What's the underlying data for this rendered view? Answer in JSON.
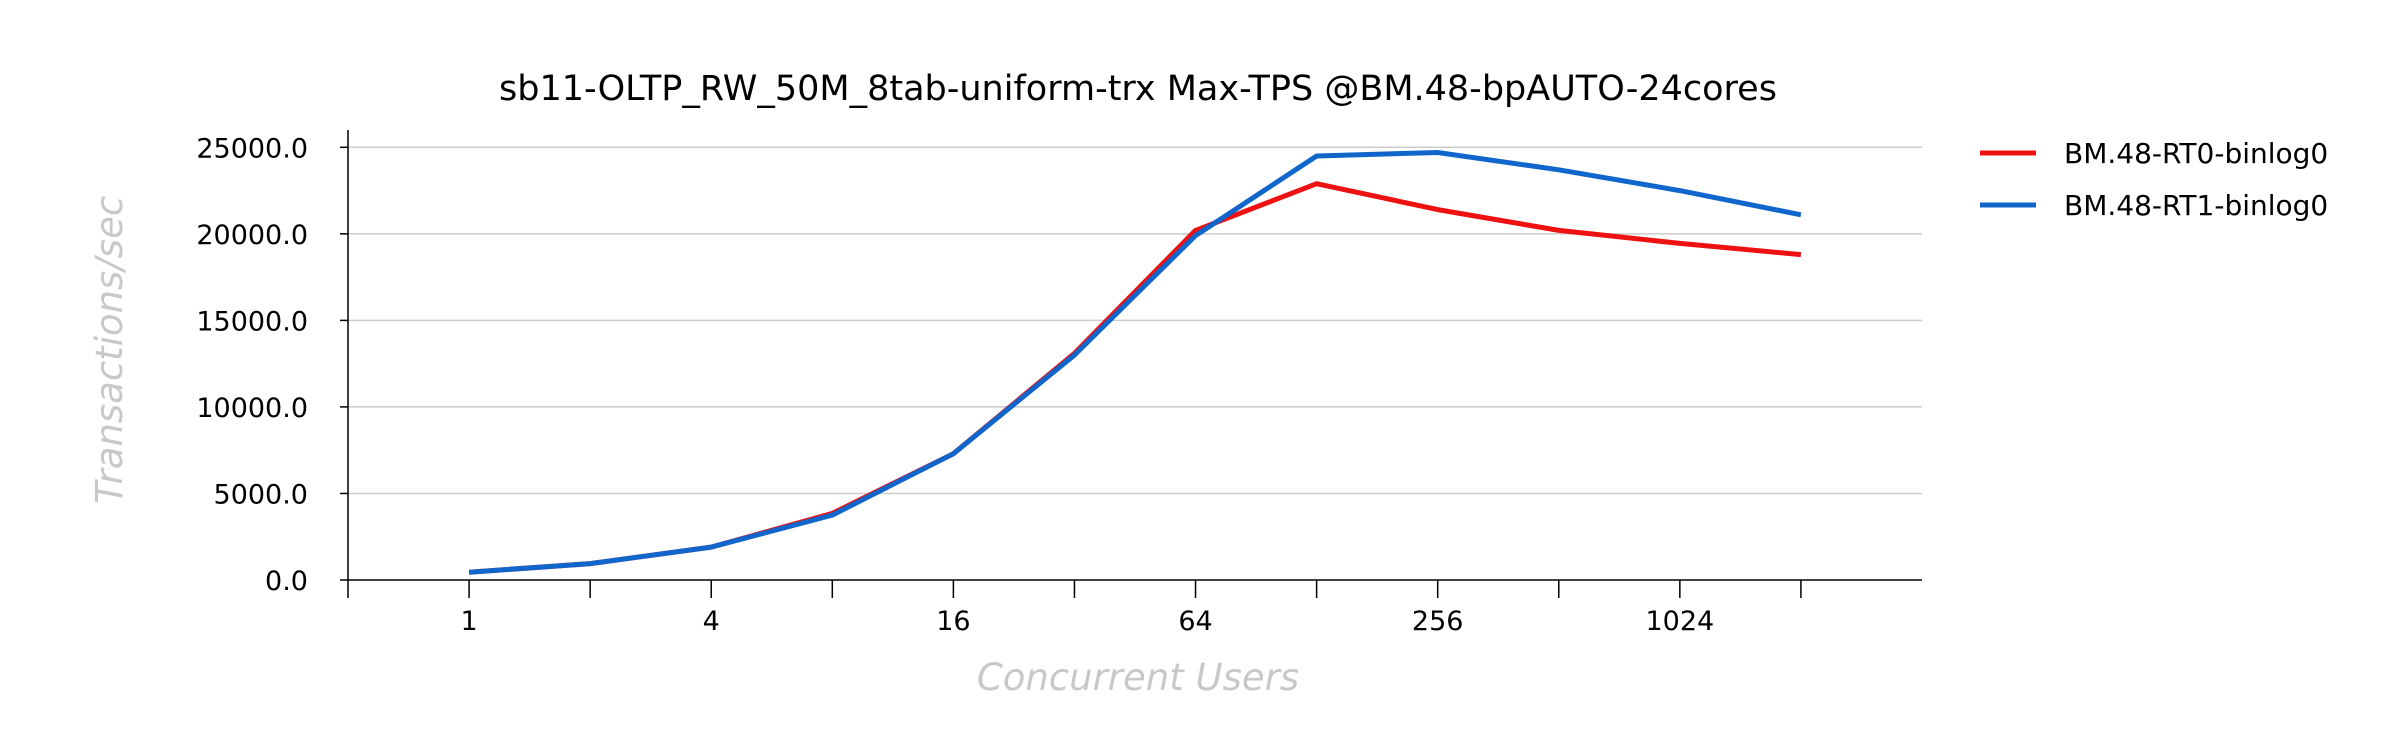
{
  "chart_data": {
    "type": "line",
    "title": "sb11-OLTP_RW_50M_8tab-uniform-trx Max-TPS @BM.48-bpAUTO-24cores",
    "xlabel": "Concurrent Users",
    "ylabel": "Transactions/sec",
    "x_scale": "log2",
    "x": [
      1,
      2,
      4,
      8,
      16,
      32,
      64,
      128,
      256,
      512,
      1024,
      2048
    ],
    "x_tick_labels": [
      "1",
      "4",
      "16",
      "64",
      "256",
      "1024"
    ],
    "y_ticks": [
      "0.0",
      "5000.0",
      "10000.0",
      "15000.0",
      "20000.0",
      "25000.0"
    ],
    "ylim": [
      0,
      26000
    ],
    "grid": "horizontal",
    "legend_position": "right",
    "series": [
      {
        "name": "BM.48-RT0-binlog0",
        "color": "#ee1111",
        "values": [
          450,
          950,
          1900,
          3850,
          7300,
          13100,
          20200,
          22900,
          21400,
          20200,
          19450,
          18800
        ]
      },
      {
        "name": "BM.48-RT1-binlog0",
        "color": "#1166cc",
        "values": [
          450,
          950,
          1900,
          3750,
          7300,
          13000,
          19900,
          24500,
          24700,
          23700,
          22500,
          21100
        ]
      }
    ]
  }
}
